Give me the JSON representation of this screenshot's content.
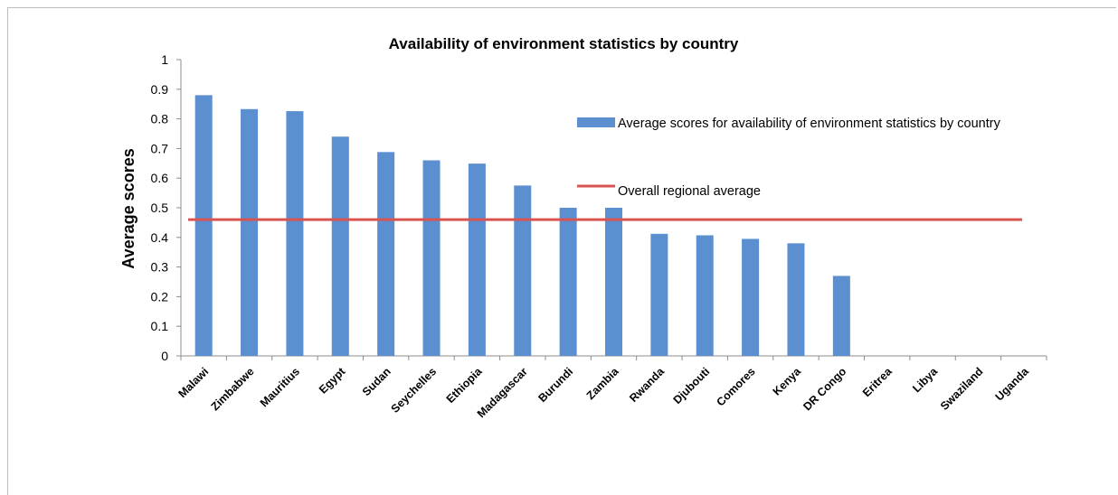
{
  "chart_data": {
    "type": "bar",
    "title": "Availability of environment statistics by country",
    "ylabel": "Average scores",
    "xlabel": "",
    "ylim": [
      0,
      1
    ],
    "yticks": [
      "0",
      "0.1",
      "0.2",
      "0.3",
      "0.4",
      "0.5",
      "0.6",
      "0.7",
      "0.8",
      "0.9",
      "1"
    ],
    "categories": [
      "Malawi",
      "Zimbabwe",
      "Mauritius",
      "Egypt",
      "Sudan",
      "Seychelles",
      "Ethiopia",
      "Madagascar",
      "Burundi",
      "Zambia",
      "Rwanda",
      "Djubouti",
      "Comores",
      "Kenya",
      "DR Congo",
      "Eritrea",
      "Libya",
      "Swaziland",
      "Uganda"
    ],
    "series": [
      {
        "name": "Average scores for availability of environment statistics by country",
        "type": "bar",
        "color": "#5b8fd0",
        "values": [
          0.88,
          0.833,
          0.826,
          0.74,
          0.688,
          0.66,
          0.649,
          0.575,
          0.5,
          0.5,
          0.412,
          0.407,
          0.395,
          0.38,
          0.27,
          0,
          0,
          0,
          0
        ]
      },
      {
        "name": "Overall regional average",
        "type": "line",
        "color": "#d9534f",
        "value": 0.46
      }
    ],
    "grid": false,
    "legend_position": "top-right"
  }
}
